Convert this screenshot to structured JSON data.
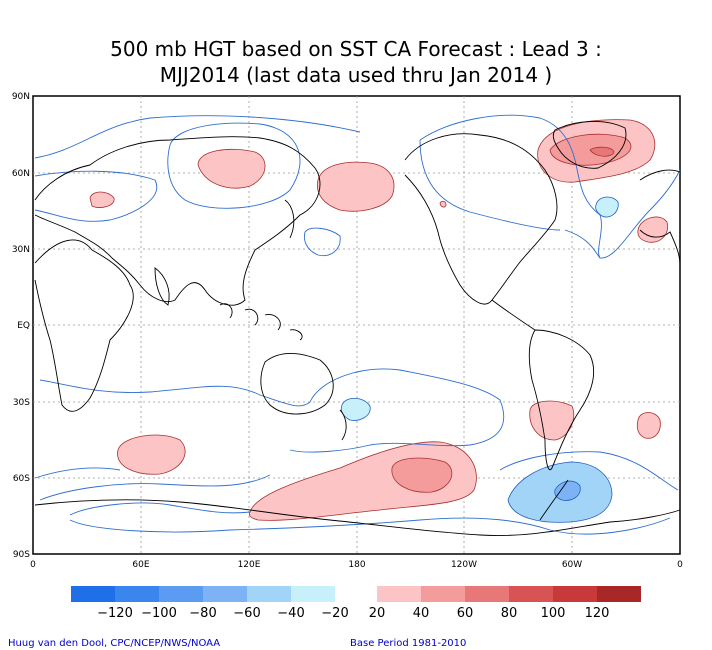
{
  "title": {
    "line1": "500 mb HGT based on SST CA Forecast : Lead 3 :",
    "line2": "MJJ2014 (last data used thru Jan 2014 )"
  },
  "map": {
    "lat_ticks": [
      "90N",
      "60N",
      "30N",
      "EQ",
      "30S",
      "60S",
      "90S"
    ],
    "lon_ticks": [
      "0",
      "60E",
      "120E",
      "180",
      "120W",
      "60W",
      "0"
    ]
  },
  "colorbar": {
    "negative_labels": [
      "−120",
      "−100",
      "−80",
      "−60",
      "−40",
      "−20"
    ],
    "positive_labels": [
      "20",
      "40",
      "60",
      "80",
      "100",
      "120"
    ],
    "negative_colors": [
      "#1f6fe8",
      "#3a85ee",
      "#5b9cf2",
      "#7db3f5",
      "#a2d4f8",
      "#c7f0fb"
    ],
    "positive_colors": [
      "#fcc4c4",
      "#f49c9c",
      "#e87878",
      "#d85454",
      "#c83a3a",
      "#a82828"
    ]
  },
  "credits": {
    "left": "Huug van den Dool, CPC/NCEP/NWS/NOAA",
    "right": "Base Period 1981-2010"
  }
}
